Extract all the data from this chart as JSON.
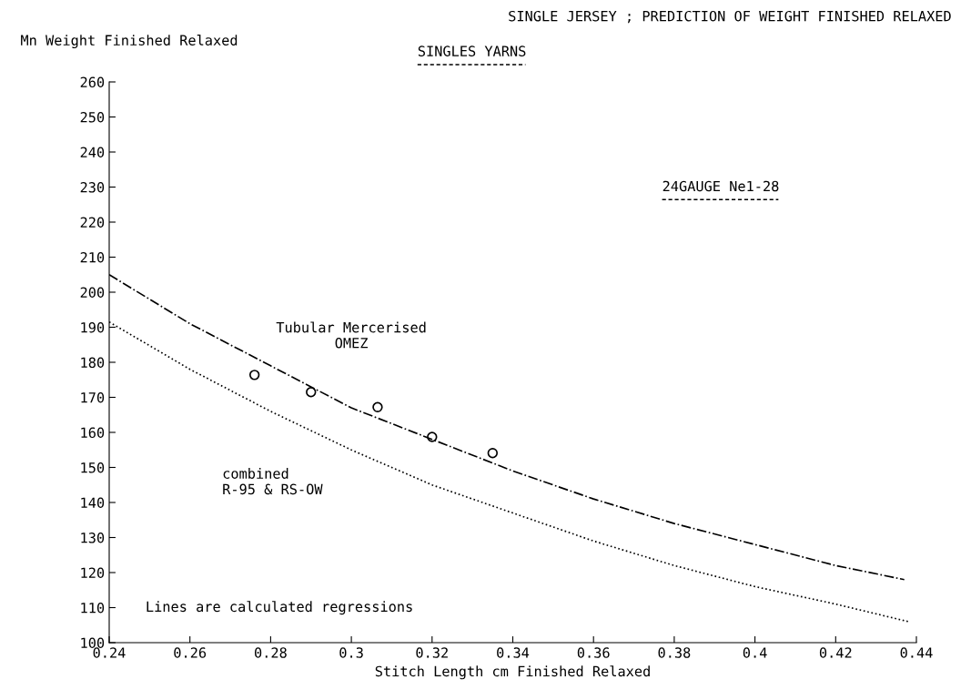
{
  "chart_data": {
    "type": "line",
    "title": "SINGLE JERSEY ; PREDICTION OF WEIGHT FINISHED RELAXED",
    "subtitle": "SINGLES YARNS",
    "xlabel": "Stitch Length cm Finished Relaxed",
    "ylabel": "Mn Weight Finished Relaxed",
    "series": [
      {
        "name": "Tubular Mercerised\nOMEZ",
        "color": "#000000",
        "line_style": "dashdot",
        "x": [
          0.24,
          0.26,
          0.28,
          0.3,
          0.32,
          0.34,
          0.36,
          0.38,
          0.4,
          0.42,
          0.437
        ],
        "values": [
          205,
          191,
          179,
          167,
          158,
          149,
          141,
          134,
          128,
          122,
          118
        ]
      },
      {
        "name": "combined\nR-95 & RS-OW",
        "color": "#000000",
        "line_style": "dotted",
        "x": [
          0.24,
          0.26,
          0.28,
          0.3,
          0.32,
          0.34,
          0.36,
          0.38,
          0.4,
          0.42,
          0.438
        ],
        "values": [
          191.5,
          178,
          166,
          155,
          145,
          137,
          129,
          122,
          116,
          111,
          106
        ]
      },
      {
        "type": "scatter",
        "marker": "circle",
        "color": "#000000",
        "x": [
          0.276,
          0.29,
          0.3065,
          0.32,
          0.335
        ],
        "values": [
          176.4,
          171.5,
          167.2,
          158.7,
          154.1
        ]
      }
    ],
    "annotations": [
      "24GAUGE Ne1-28",
      "Lines are calculated regressions"
    ],
    "xlim": [
      0.24,
      0.44
    ],
    "xticks": [
      0.24,
      0.26,
      0.28,
      0.3,
      0.32,
      0.34,
      0.36,
      0.38,
      0.4,
      0.42,
      0.44
    ],
    "ylim": [
      100,
      260
    ],
    "yticks": [
      100,
      110,
      120,
      130,
      140,
      150,
      160,
      170,
      180,
      190,
      200,
      210,
      220,
      230,
      240,
      250,
      260
    ],
    "grid": false,
    "legend": false
  }
}
